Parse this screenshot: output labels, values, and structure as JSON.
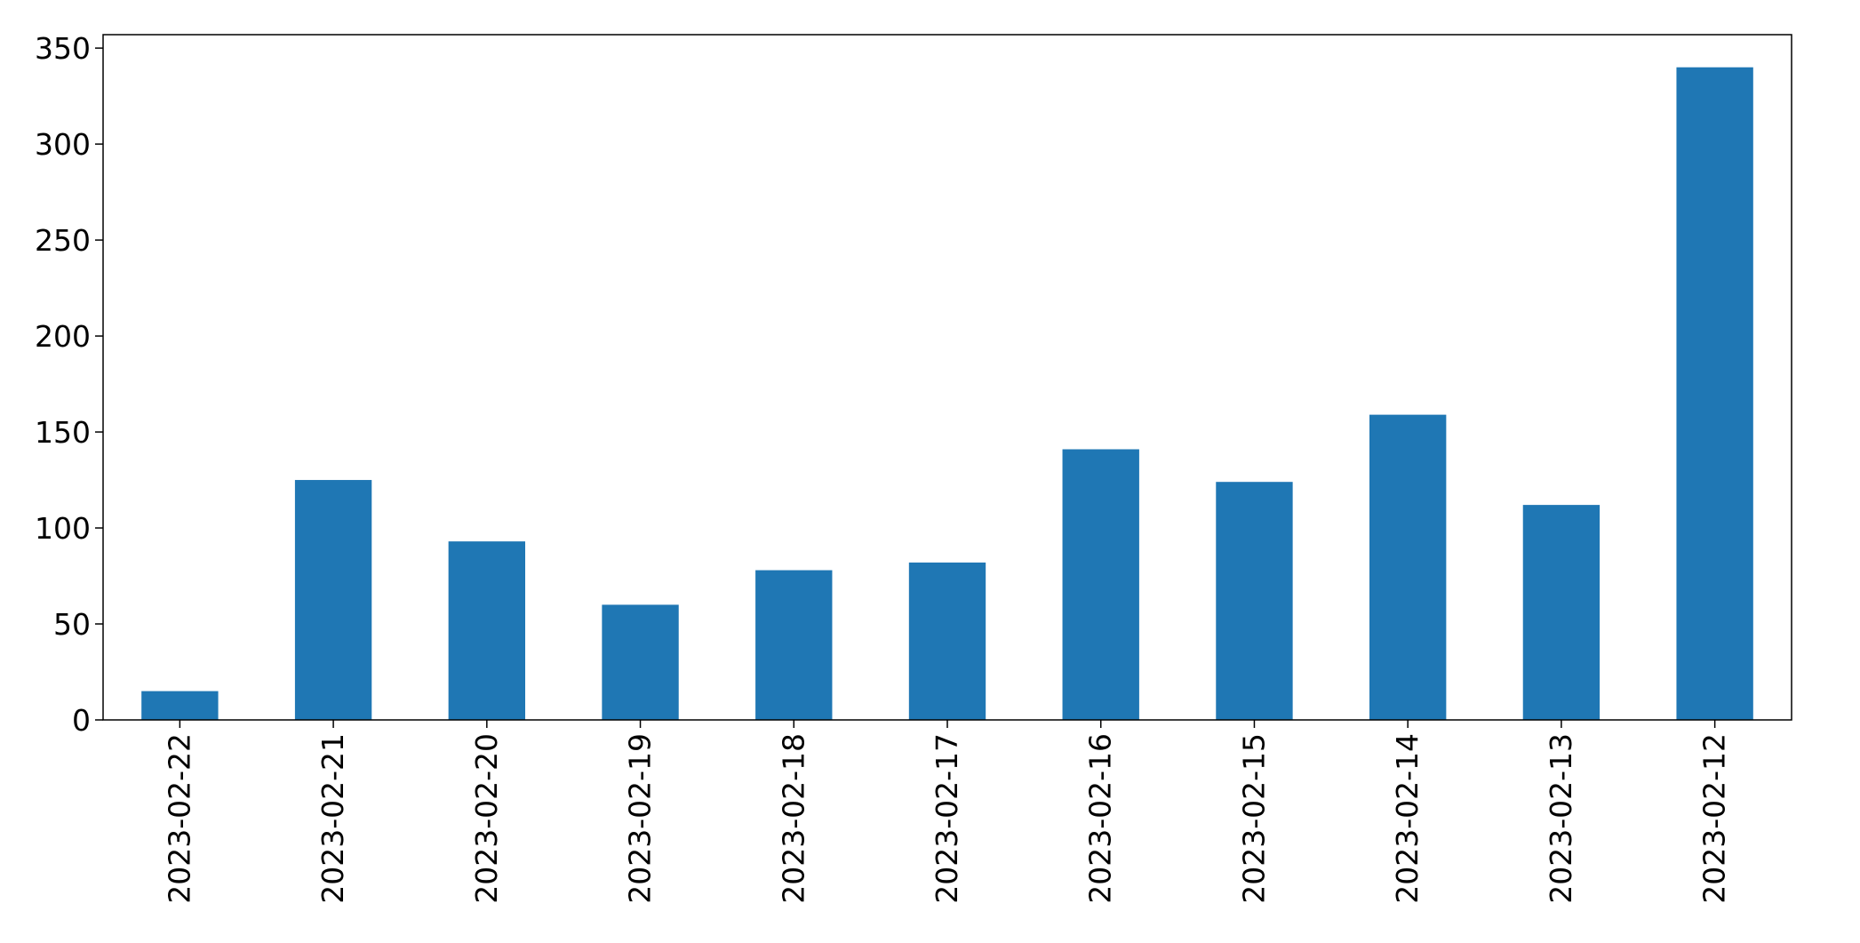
{
  "chart_data": {
    "type": "bar",
    "title": "",
    "xlabel": "",
    "ylabel": "",
    "categories": [
      "2023-02-22",
      "2023-02-21",
      "2023-02-20",
      "2023-02-19",
      "2023-02-18",
      "2023-02-17",
      "2023-02-16",
      "2023-02-15",
      "2023-02-14",
      "2023-02-13",
      "2023-02-12"
    ],
    "values": [
      15,
      125,
      93,
      60,
      78,
      82,
      141,
      124,
      159,
      112,
      340
    ],
    "ylim": [
      0,
      357
    ],
    "yticks": [
      "0",
      "50",
      "100",
      "150",
      "200",
      "250",
      "300",
      "350"
    ],
    "grid": false,
    "legend": "none",
    "bar_color": "#1f77b4",
    "x_tick_rotation": "vertical"
  }
}
